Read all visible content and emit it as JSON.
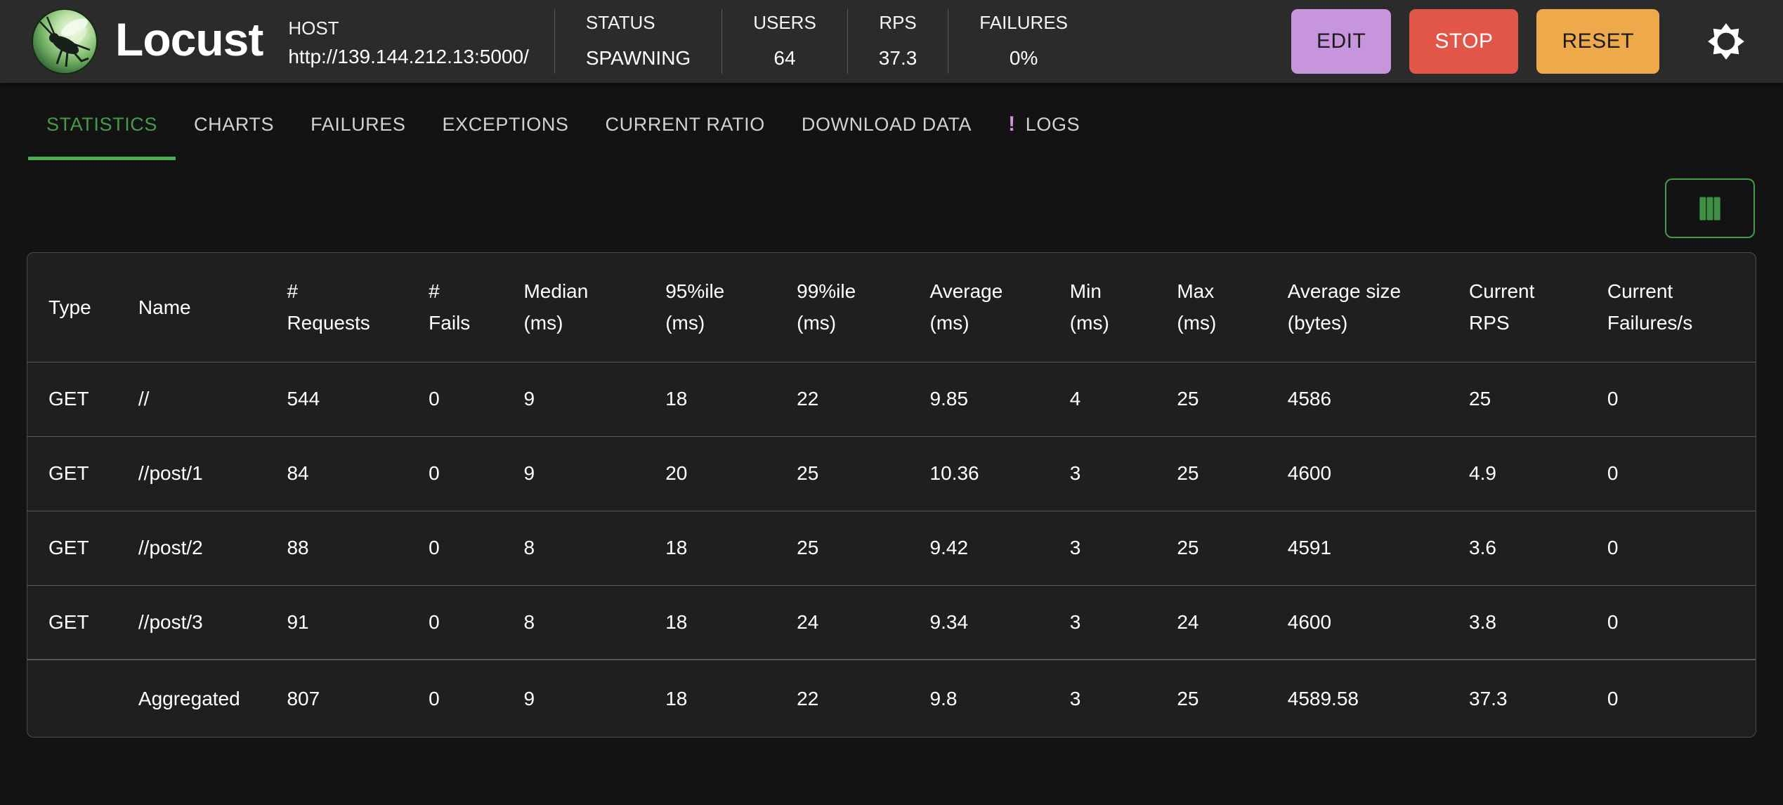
{
  "header": {
    "app_title": "Locust",
    "host": {
      "label": "HOST",
      "url": "http://139.144.212.13:5000/"
    },
    "stats": [
      {
        "label": "STATUS",
        "value": "SPAWNING"
      },
      {
        "label": "USERS",
        "value": "64"
      },
      {
        "label": "RPS",
        "value": "37.3"
      },
      {
        "label": "FAILURES",
        "value": "0%"
      }
    ],
    "actions": {
      "edit": "EDIT",
      "stop": "STOP",
      "reset": "RESET",
      "settings_icon": "gear-icon"
    }
  },
  "tabs": [
    {
      "label": "STATISTICS",
      "active": true
    },
    {
      "label": "CHARTS"
    },
    {
      "label": "FAILURES"
    },
    {
      "label": "EXCEPTIONS"
    },
    {
      "label": "CURRENT RATIO"
    },
    {
      "label": "DOWNLOAD DATA"
    },
    {
      "label": "LOGS",
      "badge": "!"
    }
  ],
  "toolbar": {
    "column_selector_icon": "columns-icon"
  },
  "table": {
    "columns": [
      {
        "l1": "Type",
        "l2": ""
      },
      {
        "l1": "Name",
        "l2": ""
      },
      {
        "l1": "#",
        "l2": "Requests"
      },
      {
        "l1": "#",
        "l2": "Fails"
      },
      {
        "l1": "Median",
        "l2": "(ms)"
      },
      {
        "l1": "95%ile",
        "l2": "(ms)"
      },
      {
        "l1": "99%ile",
        "l2": "(ms)"
      },
      {
        "l1": "Average",
        "l2": "(ms)"
      },
      {
        "l1": "Min",
        "l2": "(ms)"
      },
      {
        "l1": "Max",
        "l2": "(ms)"
      },
      {
        "l1": "Average size",
        "l2": "(bytes)"
      },
      {
        "l1": "Current",
        "l2": "RPS"
      },
      {
        "l1": "Current",
        "l2": "Failures/s"
      }
    ],
    "column_keys": [
      "type",
      "name",
      "requests",
      "fails",
      "median",
      "p95",
      "p99",
      "average",
      "min",
      "max",
      "avg-size",
      "current-rps",
      "current-failures"
    ],
    "rows": [
      {
        "cells": [
          "GET",
          "//",
          "544",
          "0",
          "9",
          "18",
          "22",
          "9.85",
          "4",
          "25",
          "4586",
          "25",
          "0"
        ]
      },
      {
        "cells": [
          "GET",
          "//post/1",
          "84",
          "0",
          "9",
          "20",
          "25",
          "10.36",
          "3",
          "25",
          "4600",
          "4.9",
          "0"
        ]
      },
      {
        "cells": [
          "GET",
          "//post/2",
          "88",
          "0",
          "8",
          "18",
          "25",
          "9.42",
          "3",
          "25",
          "4591",
          "3.6",
          "0"
        ]
      },
      {
        "cells": [
          "GET",
          "//post/3",
          "91",
          "0",
          "8",
          "18",
          "24",
          "9.34",
          "3",
          "24",
          "4600",
          "3.8",
          "0"
        ]
      },
      {
        "cells": [
          "",
          "Aggregated",
          "807",
          "0",
          "9",
          "18",
          "22",
          "9.8",
          "3",
          "25",
          "4589.58",
          "37.3",
          "0"
        ],
        "aggregated": true
      }
    ]
  },
  "colors": {
    "header_background": "#2b2b2b",
    "page_background": "#131313",
    "accent_green": "#4b9b50",
    "tab_indicator_green": "#4caf50",
    "edit_button": "#c795db",
    "stop_button": "#e2564a",
    "reset_button": "#eda94a",
    "logs_badge": "#ce93d8"
  }
}
